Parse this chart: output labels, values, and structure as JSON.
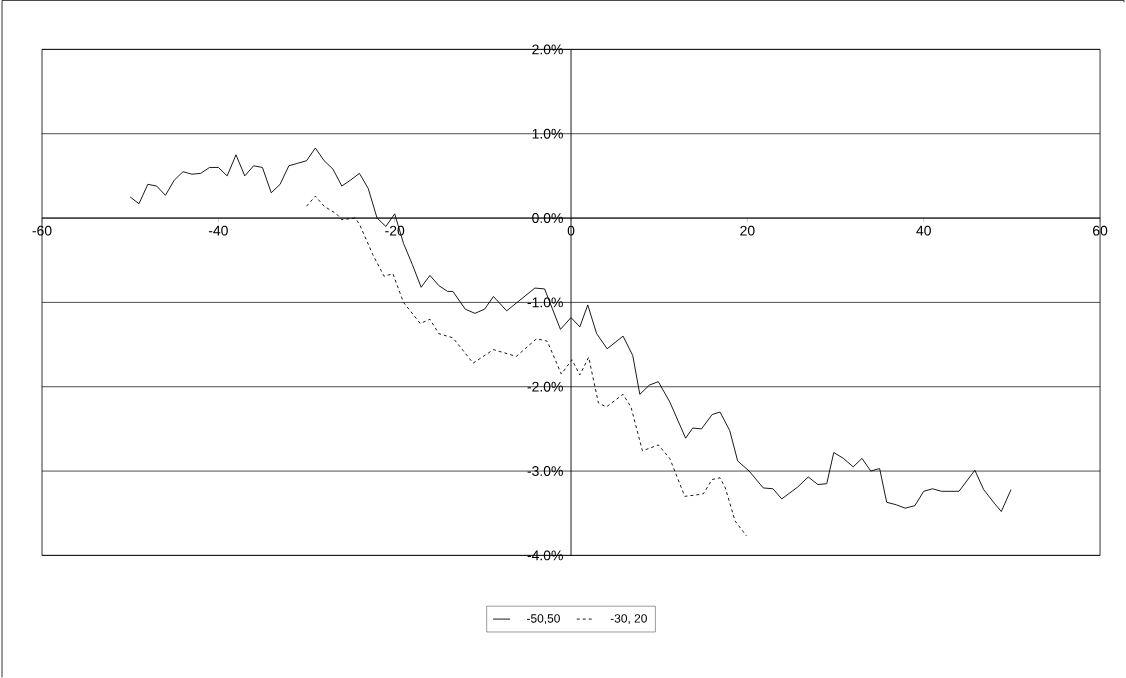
{
  "chart_data": {
    "type": "line",
    "series": [
      {
        "name": "-50,50",
        "color": "#000000",
        "line_style": "solid",
        "x": [
          -50,
          -49,
          -48,
          -47,
          -46,
          -45,
          -44,
          -43,
          -42,
          -41,
          -40,
          -39,
          -38,
          -37,
          -36,
          -35,
          -34,
          -33,
          -32,
          -31,
          -30,
          -29,
          -28,
          -27,
          -26,
          -25,
          -24,
          -23,
          -22,
          -21,
          -20,
          -19,
          -18,
          -17,
          -16,
          -15,
          -14,
          -13.4,
          -12,
          -10.9,
          -9.8,
          -8.8,
          -7.3,
          -4.1,
          -3,
          -1.2,
          0,
          1,
          1.9,
          2.9,
          4.1,
          5.9,
          7,
          7.8,
          8.9,
          9.9,
          11.2,
          13,
          13.8,
          14.8,
          16,
          16.9,
          18,
          18.9,
          20.2,
          21.8,
          22.9,
          23.9,
          25.7,
          26.9,
          28,
          29,
          29.8,
          30.9,
          32,
          33,
          34,
          35,
          35.8,
          36.9,
          37.9,
          39,
          40,
          41,
          42,
          44,
          45.8,
          46.8,
          48,
          48.8,
          49.9
        ],
        "values": [
          0.25,
          0.17,
          0.4,
          0.38,
          0.27,
          0.45,
          0.55,
          0.52,
          0.53,
          0.6,
          0.6,
          0.5,
          0.75,
          0.5,
          0.62,
          0.6,
          0.3,
          0.4,
          0.62,
          0.65,
          0.68,
          0.83,
          0.68,
          0.58,
          0.38,
          0.45,
          0.53,
          0.35,
          0.0,
          -0.1,
          0.05,
          -0.3,
          -0.55,
          -0.82,
          -0.68,
          -0.8,
          -0.87,
          -0.87,
          -1.08,
          -1.13,
          -1.08,
          -0.93,
          -1.1,
          -0.83,
          -0.84,
          -1.32,
          -1.18,
          -1.29,
          -1.03,
          -1.37,
          -1.55,
          -1.4,
          -1.63,
          -2.09,
          -1.98,
          -1.94,
          -2.18,
          -2.61,
          -2.49,
          -2.5,
          -2.33,
          -2.3,
          -2.52,
          -2.88,
          -3.0,
          -3.2,
          -3.21,
          -3.33,
          -3.19,
          -3.07,
          -3.16,
          -3.15,
          -2.78,
          -2.85,
          -2.95,
          -2.85,
          -3.0,
          -2.97,
          -3.37,
          -3.4,
          -3.44,
          -3.41,
          -3.24,
          -3.21,
          -3.24,
          -3.24,
          -2.99,
          -3.22,
          -3.38,
          -3.48,
          -3.22
        ]
      },
      {
        "name": "-30, 20",
        "color": "#000000",
        "line_style": "dashed",
        "x": [
          -30,
          -29,
          -28,
          -26.6,
          -26,
          -24.5,
          -24,
          -22.5,
          -21.2,
          -20.2,
          -19,
          -17.1,
          -16,
          -15,
          -13.4,
          -11.1,
          -8.8,
          -6.2,
          -3.9,
          -2.7,
          -1.1,
          0.1,
          1,
          2,
          3.1,
          4,
          5.9,
          6.8,
          8.1,
          9.9,
          11.2,
          12.9,
          14.4,
          15,
          16,
          16.9,
          17.5,
          18.6,
          19.9
        ],
        "values": [
          0.14,
          0.26,
          0.14,
          0.05,
          -0.02,
          0.0,
          -0.07,
          -0.43,
          -0.69,
          -0.66,
          -1.0,
          -1.25,
          -1.2,
          -1.37,
          -1.42,
          -1.72,
          -1.56,
          -1.64,
          -1.43,
          -1.46,
          -1.85,
          -1.68,
          -1.86,
          -1.65,
          -2.19,
          -2.24,
          -2.09,
          -2.24,
          -2.76,
          -2.69,
          -2.85,
          -3.3,
          -3.28,
          -3.27,
          -3.1,
          -3.08,
          -3.2,
          -3.59,
          -3.77
        ]
      }
    ],
    "xlim": [
      -60,
      60
    ],
    "ylim": [
      -4,
      2
    ],
    "xticks": [
      -60,
      -40,
      -20,
      0,
      20,
      40,
      60
    ],
    "yticks": [
      {
        "value": -4,
        "label": "-4.0%"
      },
      {
        "value": -3,
        "label": "-3.0%"
      },
      {
        "value": -2,
        "label": "-2.0%"
      },
      {
        "value": -1,
        "label": "-1.0%"
      },
      {
        "value": 0,
        "label": "0.0%"
      },
      {
        "value": 1,
        "label": "1.0%"
      },
      {
        "value": 2,
        "label": "2.0%"
      }
    ],
    "grid": "y",
    "legend": "bottom"
  }
}
